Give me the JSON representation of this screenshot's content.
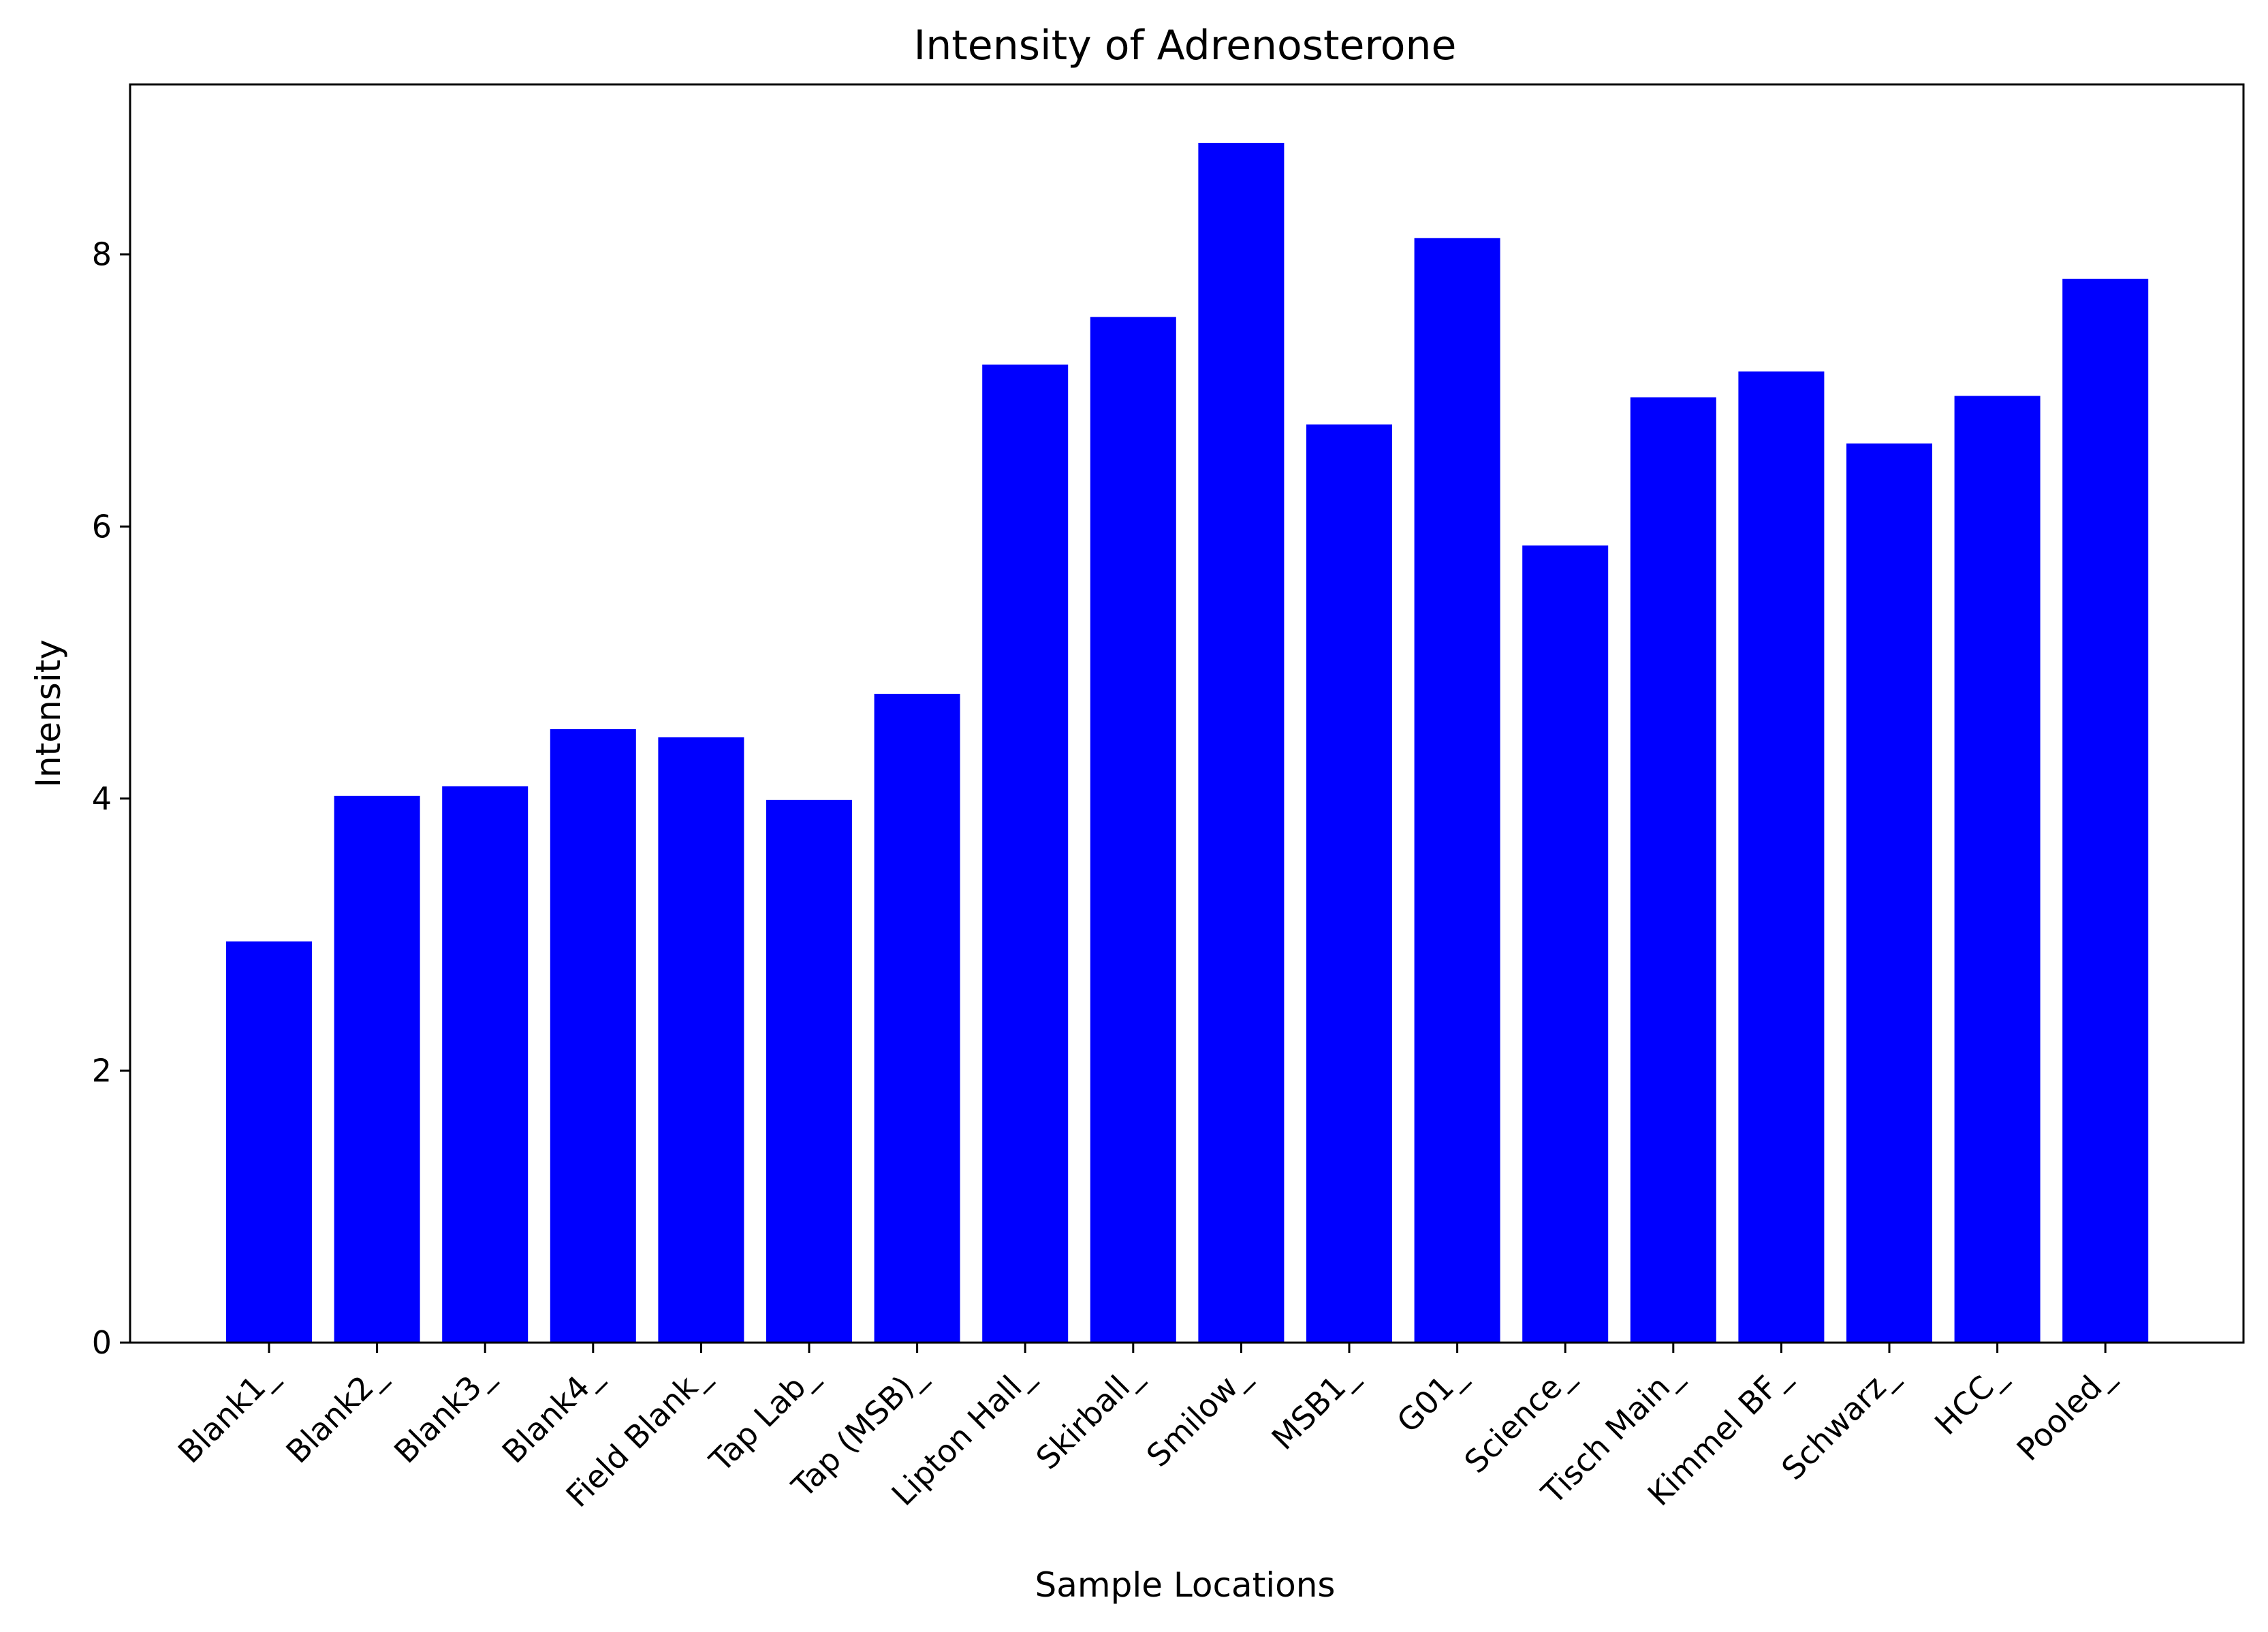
{
  "chart_data": {
    "type": "bar",
    "title": "Intensity of Adrenosterone",
    "xlabel": "Sample Locations",
    "ylabel": "Intensity",
    "categories": [
      "Blank1_",
      "Blank2_",
      "Blank3_",
      "Blank4_",
      "Field Blank_",
      "Tap Lab_",
      "Tap (MSB)_",
      "Lipton Hall_",
      "Skirball_",
      "Smilow_",
      "MSB1_",
      "G01_",
      "Science_",
      "Tisch Main_",
      "Kimmel BF_",
      "Schwarz_",
      "HCC_",
      "Pooled_"
    ],
    "values": [
      2.95,
      4.02,
      4.09,
      4.51,
      4.45,
      3.99,
      4.77,
      7.19,
      7.54,
      8.82,
      6.75,
      8.12,
      5.86,
      6.95,
      7.14,
      6.61,
      6.96,
      7.82
    ],
    "ylim": [
      0,
      9.25
    ],
    "yticks": [
      0,
      2,
      4,
      6,
      8
    ],
    "bar_color": "#0000ff",
    "grid": false,
    "legend": "none"
  }
}
